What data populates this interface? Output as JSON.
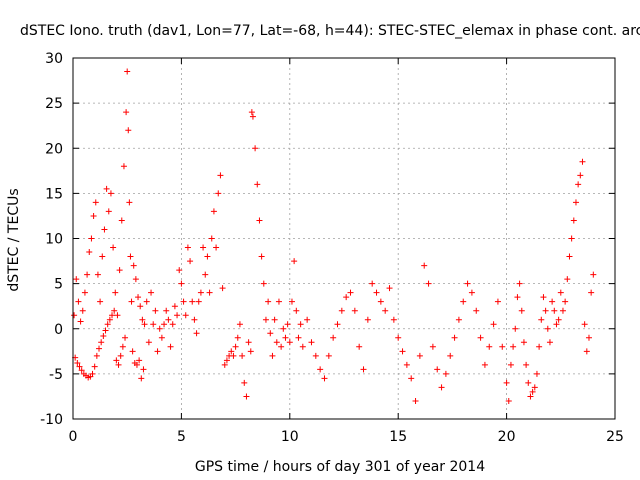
{
  "chart_data": {
    "type": "scatter",
    "title": "dSTEC Iono. truth (dav1, Lon=77, Lat=-68, h=44): STEC-STEC_elemax in phase cont. arc",
    "xlabel": "GPS time / hours of day 301 of year 2014",
    "ylabel": "dSTEC  / TECUs",
    "xlim": [
      0,
      25
    ],
    "ylim": [
      -10,
      30
    ],
    "x_ticks": [
      0,
      5,
      10,
      15,
      20,
      25
    ],
    "y_ticks": [
      -10,
      -5,
      0,
      5,
      10,
      15,
      20,
      25,
      30
    ],
    "grid": true,
    "marker": "+",
    "color": "#ff0000",
    "series": [
      {
        "name": "dSTEC",
        "points": [
          [
            0.05,
            1.5
          ],
          [
            0.1,
            -3.2
          ],
          [
            0.15,
            5.5
          ],
          [
            0.2,
            -3.8
          ],
          [
            0.25,
            3.0
          ],
          [
            0.3,
            -4.2
          ],
          [
            0.35,
            0.8
          ],
          [
            0.4,
            -4.6
          ],
          [
            0.45,
            2.0
          ],
          [
            0.5,
            -5.0
          ],
          [
            0.55,
            4.0
          ],
          [
            0.6,
            -5.2
          ],
          [
            0.65,
            6.0
          ],
          [
            0.7,
            -5.4
          ],
          [
            0.75,
            8.5
          ],
          [
            0.8,
            -5.3
          ],
          [
            0.85,
            10.0
          ],
          [
            0.9,
            -5.0
          ],
          [
            0.95,
            12.5
          ],
          [
            1.0,
            -4.2
          ],
          [
            1.05,
            14.0
          ],
          [
            1.1,
            -3.0
          ],
          [
            1.15,
            6.0
          ],
          [
            1.2,
            -2.2
          ],
          [
            1.25,
            3.0
          ],
          [
            1.3,
            -1.5
          ],
          [
            1.35,
            8.0
          ],
          [
            1.4,
            -0.8
          ],
          [
            1.45,
            11.0
          ],
          [
            1.5,
            -0.2
          ],
          [
            1.55,
            15.5
          ],
          [
            1.6,
            0.5
          ],
          [
            1.65,
            13.0
          ],
          [
            1.7,
            1.0
          ],
          [
            1.75,
            15.0
          ],
          [
            1.8,
            1.5
          ],
          [
            1.85,
            9.0
          ],
          [
            1.9,
            2.0
          ],
          [
            1.95,
            4.0
          ],
          [
            2.0,
            -3.5
          ],
          [
            2.05,
            1.5
          ],
          [
            2.1,
            -4.0
          ],
          [
            2.15,
            6.5
          ],
          [
            2.2,
            -3.0
          ],
          [
            2.25,
            12.0
          ],
          [
            2.3,
            -2.0
          ],
          [
            2.35,
            18.0
          ],
          [
            2.4,
            -1.0
          ],
          [
            2.45,
            24.0
          ],
          [
            2.5,
            28.5
          ],
          [
            2.55,
            22.0
          ],
          [
            2.6,
            14.0
          ],
          [
            2.65,
            8.0
          ],
          [
            2.7,
            3.0
          ],
          [
            2.75,
            -2.5
          ],
          [
            2.8,
            7.0
          ],
          [
            2.85,
            -3.8
          ],
          [
            2.9,
            5.5
          ],
          [
            2.95,
            -4.0
          ],
          [
            3.0,
            3.5
          ],
          [
            3.05,
            -3.5
          ],
          [
            3.1,
            2.5
          ],
          [
            3.15,
            -5.5
          ],
          [
            3.2,
            1.0
          ],
          [
            3.25,
            -4.5
          ],
          [
            3.3,
            0.5
          ],
          [
            3.4,
            3.0
          ],
          [
            3.5,
            -1.5
          ],
          [
            3.6,
            4.0
          ],
          [
            3.7,
            0.5
          ],
          [
            3.8,
            2.0
          ],
          [
            3.9,
            -2.5
          ],
          [
            4.0,
            0.0
          ],
          [
            4.1,
            -1.0
          ],
          [
            4.2,
            0.5
          ],
          [
            4.3,
            2.0
          ],
          [
            4.4,
            1.0
          ],
          [
            4.5,
            -2.0
          ],
          [
            4.6,
            0.5
          ],
          [
            4.7,
            2.5
          ],
          [
            4.8,
            1.5
          ],
          [
            4.9,
            6.5
          ],
          [
            5.0,
            5.0
          ],
          [
            5.1,
            3.0
          ],
          [
            5.2,
            1.5
          ],
          [
            5.3,
            9.0
          ],
          [
            5.4,
            7.5
          ],
          [
            5.5,
            3.0
          ],
          [
            5.6,
            1.0
          ],
          [
            5.7,
            -0.5
          ],
          [
            5.8,
            3.0
          ],
          [
            5.9,
            4.0
          ],
          [
            6.0,
            9.0
          ],
          [
            6.1,
            6.0
          ],
          [
            6.2,
            8.0
          ],
          [
            6.3,
            4.0
          ],
          [
            6.4,
            10.0
          ],
          [
            6.5,
            13.0
          ],
          [
            6.6,
            9.0
          ],
          [
            6.7,
            15.0
          ],
          [
            6.8,
            17.0
          ],
          [
            6.9,
            4.5
          ],
          [
            7.0,
            -4.0
          ],
          [
            7.1,
            -3.5
          ],
          [
            7.2,
            -3.0
          ],
          [
            7.3,
            -2.5
          ],
          [
            7.4,
            -3.0
          ],
          [
            7.5,
            -2.0
          ],
          [
            7.6,
            -1.0
          ],
          [
            7.7,
            0.5
          ],
          [
            7.8,
            -3.0
          ],
          [
            7.9,
            -6.0
          ],
          [
            8.0,
            -7.5
          ],
          [
            8.1,
            -1.5
          ],
          [
            8.2,
            -2.5
          ],
          [
            8.25,
            24.0
          ],
          [
            8.3,
            23.5
          ],
          [
            8.4,
            20.0
          ],
          [
            8.5,
            16.0
          ],
          [
            8.6,
            12.0
          ],
          [
            8.7,
            8.0
          ],
          [
            8.8,
            5.0
          ],
          [
            8.9,
            1.0
          ],
          [
            9.0,
            3.0
          ],
          [
            9.1,
            -0.5
          ],
          [
            9.2,
            -3.0
          ],
          [
            9.3,
            1.0
          ],
          [
            9.4,
            -1.5
          ],
          [
            9.5,
            3.0
          ],
          [
            9.6,
            -2.0
          ],
          [
            9.7,
            0.0
          ],
          [
            9.8,
            -1.0
          ],
          [
            9.9,
            0.5
          ],
          [
            10.0,
            -1.5
          ],
          [
            10.1,
            3.0
          ],
          [
            10.2,
            7.5
          ],
          [
            10.3,
            2.0
          ],
          [
            10.4,
            -1.0
          ],
          [
            10.5,
            0.5
          ],
          [
            10.6,
            -2.0
          ],
          [
            10.8,
            1.0
          ],
          [
            11.0,
            -1.5
          ],
          [
            11.2,
            -3.0
          ],
          [
            11.4,
            -4.5
          ],
          [
            11.6,
            -5.5
          ],
          [
            11.8,
            -3.0
          ],
          [
            12.0,
            -1.0
          ],
          [
            12.2,
            0.5
          ],
          [
            12.4,
            2.0
          ],
          [
            12.6,
            3.5
          ],
          [
            12.8,
            4.0
          ],
          [
            13.0,
            2.0
          ],
          [
            13.2,
            -2.0
          ],
          [
            13.4,
            -4.5
          ],
          [
            13.6,
            1.0
          ],
          [
            13.8,
            5.0
          ],
          [
            14.0,
            4.0
          ],
          [
            14.2,
            3.0
          ],
          [
            14.4,
            2.0
          ],
          [
            14.6,
            4.5
          ],
          [
            14.8,
            1.0
          ],
          [
            15.0,
            -1.0
          ],
          [
            15.2,
            -2.5
          ],
          [
            15.4,
            -4.0
          ],
          [
            15.6,
            -5.5
          ],
          [
            15.8,
            -8.0
          ],
          [
            16.0,
            -3.0
          ],
          [
            16.2,
            7.0
          ],
          [
            16.4,
            5.0
          ],
          [
            16.6,
            -2.0
          ],
          [
            16.8,
            -4.5
          ],
          [
            17.0,
            -6.5
          ],
          [
            17.2,
            -5.0
          ],
          [
            17.4,
            -3.0
          ],
          [
            17.6,
            -1.0
          ],
          [
            17.8,
            1.0
          ],
          [
            18.0,
            3.0
          ],
          [
            18.2,
            5.0
          ],
          [
            18.4,
            4.0
          ],
          [
            18.6,
            2.0
          ],
          [
            18.8,
            -1.0
          ],
          [
            19.0,
            -4.0
          ],
          [
            19.2,
            -2.0
          ],
          [
            19.4,
            0.5
          ],
          [
            19.6,
            3.0
          ],
          [
            19.8,
            -2.0
          ],
          [
            20.0,
            -6.0
          ],
          [
            20.1,
            -8.0
          ],
          [
            20.2,
            -4.0
          ],
          [
            20.3,
            -2.0
          ],
          [
            20.4,
            0.0
          ],
          [
            20.5,
            3.5
          ],
          [
            20.6,
            5.0
          ],
          [
            20.7,
            2.0
          ],
          [
            20.8,
            -1.5
          ],
          [
            20.9,
            -4.0
          ],
          [
            21.0,
            -6.0
          ],
          [
            21.1,
            -7.5
          ],
          [
            21.2,
            -7.0
          ],
          [
            21.3,
            -6.5
          ],
          [
            21.4,
            -5.0
          ],
          [
            21.5,
            -2.0
          ],
          [
            21.6,
            1.0
          ],
          [
            21.7,
            3.5
          ],
          [
            21.8,
            2.0
          ],
          [
            21.9,
            0.0
          ],
          [
            22.0,
            -1.5
          ],
          [
            22.1,
            3.0
          ],
          [
            22.2,
            2.0
          ],
          [
            22.3,
            0.5
          ],
          [
            22.4,
            1.0
          ],
          [
            22.5,
            4.0
          ],
          [
            22.6,
            2.0
          ],
          [
            22.7,
            3.0
          ],
          [
            22.8,
            5.5
          ],
          [
            22.9,
            8.0
          ],
          [
            23.0,
            10.0
          ],
          [
            23.1,
            12.0
          ],
          [
            23.2,
            14.0
          ],
          [
            23.3,
            16.0
          ],
          [
            23.4,
            17.0
          ],
          [
            23.5,
            18.5
          ],
          [
            23.6,
            0.5
          ],
          [
            23.7,
            -2.5
          ],
          [
            23.8,
            -1.0
          ],
          [
            23.9,
            4.0
          ],
          [
            24.0,
            6.0
          ]
        ]
      }
    ]
  }
}
